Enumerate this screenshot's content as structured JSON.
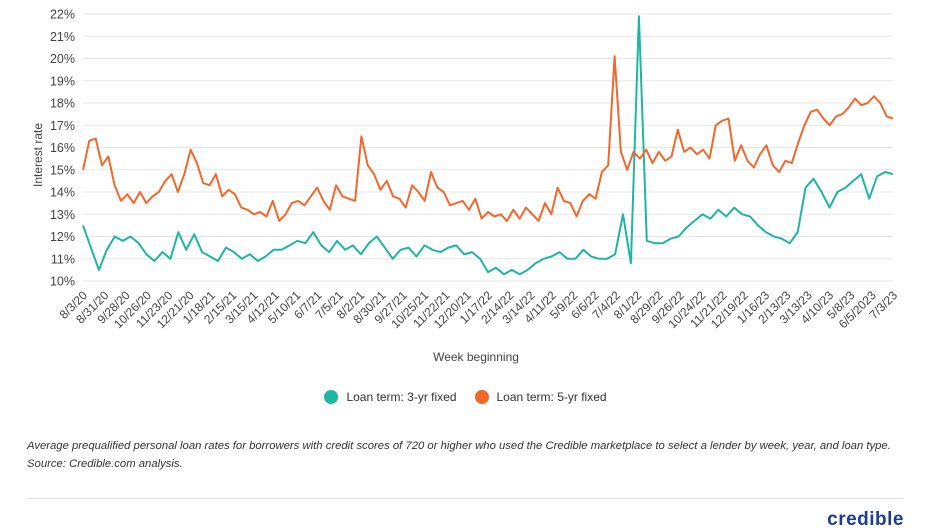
{
  "chart_data": {
    "type": "line",
    "ylabel": "Interest rate",
    "xlabel": "Week beginning",
    "ylim": [
      10,
      22
    ],
    "yticks": [
      "10%",
      "11%",
      "12%",
      "13%",
      "14%",
      "15%",
      "16%",
      "17%",
      "18%",
      "19%",
      "20%",
      "21%",
      "22%"
    ],
    "x_tick_labels": [
      "8/3/20",
      "8/31/20",
      "9/28/20",
      "10/26/20",
      "11/23/20",
      "12/21/20",
      "1/18/21",
      "2/15/21",
      "3/15/21",
      "4/12/21",
      "5/10/21",
      "6/7/21",
      "7/5/21",
      "8/2/21",
      "8/30/21",
      "9/27/21",
      "10/25/21",
      "11/22/21",
      "12/20/21",
      "1/17/22",
      "2/14/22",
      "3/14/22",
      "4/11/22",
      "5/9/22",
      "6/6/22",
      "7/4/22",
      "8/1/22",
      "8/29/22",
      "9/26/22",
      "10/24/22",
      "11/21/22",
      "12/19/22",
      "1/16/23",
      "2/13/23",
      "3/13/23",
      "4/10/23",
      "5/8/23",
      "6/5/2023",
      "7/3/23"
    ],
    "series": [
      {
        "name": "Loan term: 3-yr fixed",
        "color": "#1fb5a3",
        "values": [
          12.5,
          11.5,
          10.5,
          11.4,
          12.0,
          11.8,
          12.0,
          11.7,
          11.2,
          10.9,
          11.3,
          11.0,
          12.2,
          11.4,
          12.1,
          11.3,
          11.1,
          10.9,
          11.5,
          11.3,
          11.0,
          11.2,
          10.9,
          11.1,
          11.4,
          11.4,
          11.6,
          11.8,
          11.7,
          12.2,
          11.6,
          11.3,
          11.8,
          11.4,
          11.6,
          11.2,
          11.7,
          12.0,
          11.5,
          11.0,
          11.4,
          11.5,
          11.1,
          11.6,
          11.4,
          11.3,
          11.5,
          11.6,
          11.2,
          11.3,
          11.0,
          10.4,
          10.6,
          10.3,
          10.5,
          10.3,
          10.5,
          10.8,
          11.0,
          11.1,
          11.3,
          11.0,
          11.0,
          11.4,
          11.1,
          11.0,
          11.0,
          11.2,
          13.0,
          10.8,
          21.9,
          11.8,
          11.7,
          11.7,
          11.9,
          12.0,
          12.4,
          12.7,
          13.0,
          12.8,
          13.2,
          12.9,
          13.3,
          13.0,
          12.9,
          12.5,
          12.2,
          12.0,
          11.9,
          11.7,
          12.2,
          14.2,
          14.6,
          14.0,
          13.3,
          14.0,
          14.2,
          14.5,
          14.8,
          13.7,
          14.7,
          14.9,
          14.8
        ]
      },
      {
        "name": "Loan term: 5-yr fixed",
        "color": "#f0682b",
        "values": [
          15.0,
          16.3,
          16.4,
          15.2,
          15.6,
          14.3,
          13.6,
          13.9,
          13.5,
          14.0,
          13.5,
          13.8,
          14.0,
          14.5,
          14.8,
          14.0,
          14.8,
          15.9,
          15.3,
          14.4,
          14.3,
          14.8,
          13.8,
          14.1,
          13.9,
          13.3,
          13.2,
          13.0,
          13.1,
          12.9,
          13.6,
          12.7,
          13.0,
          13.5,
          13.6,
          13.4,
          13.8,
          14.2,
          13.6,
          13.2,
          14.3,
          13.8,
          13.7,
          13.6,
          16.5,
          15.2,
          14.8,
          14.1,
          14.5,
          13.8,
          13.7,
          13.3,
          14.3,
          14.0,
          13.6,
          14.9,
          14.2,
          14.0,
          13.4,
          13.5,
          13.6,
          13.2,
          13.7,
          12.8,
          13.1,
          12.9,
          13.0,
          12.7,
          13.2,
          12.8,
          13.3,
          13.0,
          12.7,
          13.5,
          13.0,
          14.2,
          13.6,
          13.5,
          12.9,
          13.6,
          13.9,
          13.7,
          14.9,
          15.2,
          20.1,
          15.8,
          15.0,
          15.8,
          15.5,
          15.9,
          15.3,
          15.8,
          15.4,
          15.6,
          16.8,
          15.8,
          16.0,
          15.7,
          15.9,
          15.5,
          17.0,
          17.2,
          17.3,
          15.4,
          16.1,
          15.4,
          15.1,
          15.7,
          16.1,
          15.2,
          14.9,
          15.4,
          15.3,
          16.2,
          17.0,
          17.6,
          17.7,
          17.3,
          17.0,
          17.4,
          17.5,
          17.8,
          18.2,
          17.9,
          18.0,
          18.3,
          18.0,
          17.4,
          17.3
        ]
      }
    ],
    "grid": "horizontal",
    "legend_position": "bottom-center"
  },
  "legend": {
    "item1": "Loan term: 3-yr fixed",
    "item2": "Loan term: 5-yr fixed"
  },
  "caption": "Average prequalified personal loan rates for borrowers with credit scores of 720 or higher who used the Credible marketplace to select a lender by week, year, and loan type. Source: Credible.com analysis.",
  "logo_text": "credible"
}
